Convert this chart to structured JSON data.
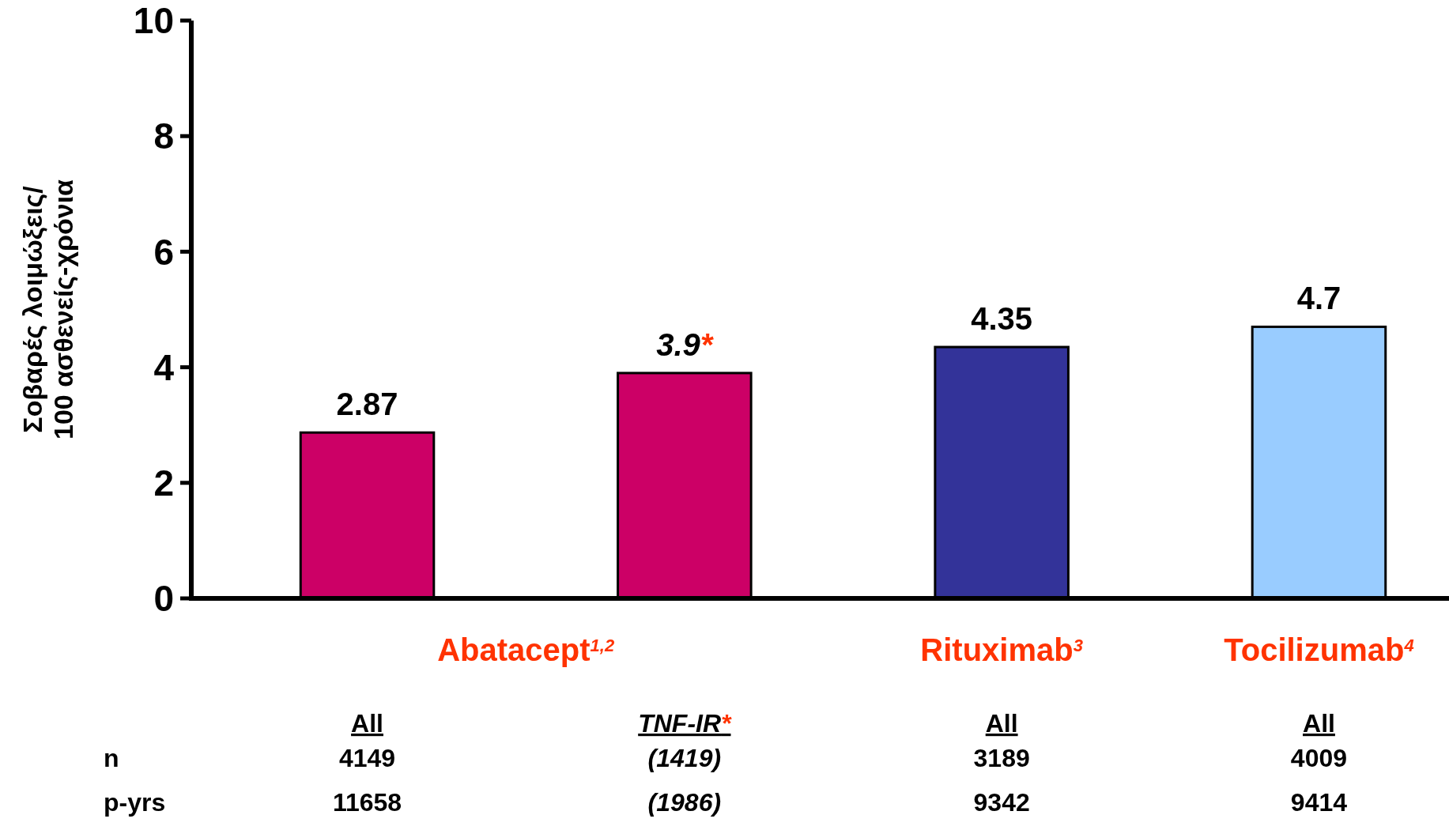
{
  "chart_data": {
    "type": "bar",
    "ylabel": "Σοβαρές λοιμώξεις/ 100 ασθενείς-χρόνια",
    "categories": [
      "All",
      "TNF-IR*",
      "All",
      "All"
    ],
    "values": [
      2.87,
      3.9,
      4.35,
      4.7
    ],
    "colors": [
      "#cc0066",
      "#cc0066",
      "#333399",
      "#99ccff"
    ],
    "value_labels": [
      "2.87",
      "3.9*",
      "4.35",
      "4.7"
    ],
    "ylim": [
      0,
      10
    ],
    "yticks": [
      0,
      2,
      4,
      6,
      8,
      10
    ],
    "grid": false,
    "annotations": [
      "Abatacept$^{1,2}$",
      "Rituximab$^{3}$",
      "Tocilizumab$^{4}$",
      "n",
      "4149",
      "(1419)",
      "3189",
      "4009",
      "p-yrs",
      "11658",
      "(1986)",
      "9342",
      "9414"
    ]
  }
}
